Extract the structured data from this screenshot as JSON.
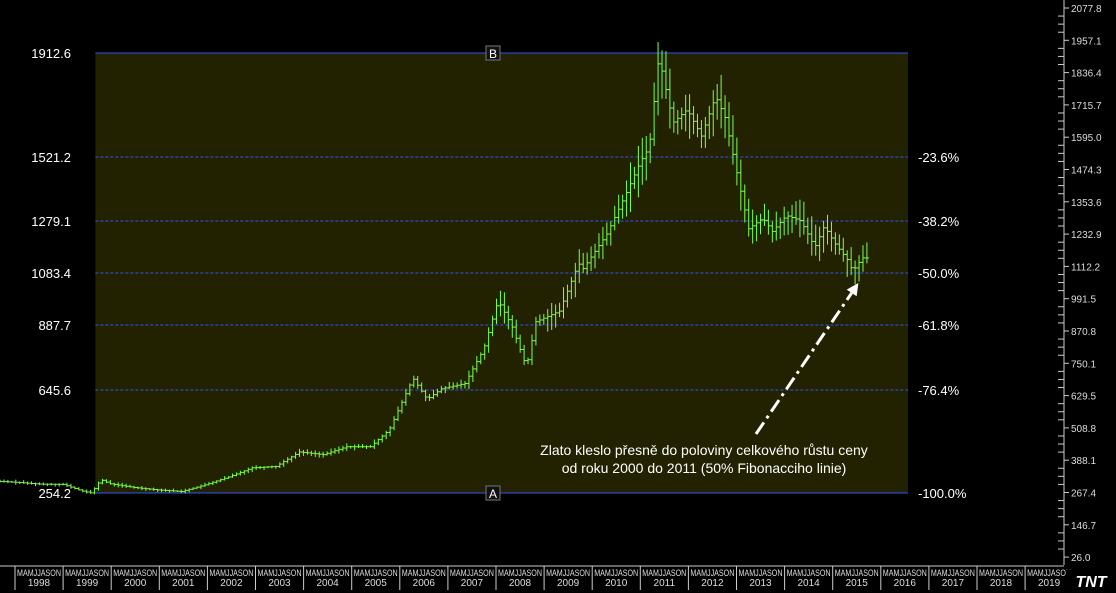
{
  "chart_data": {
    "type": "ohlc-bar",
    "title": "",
    "xlabel": "",
    "ylabel": "",
    "ylim": [
      0,
      2100
    ],
    "grid": false,
    "legend": "none",
    "colors": {
      "background": "#000000",
      "plot_fill": "#222200",
      "bars": "#7CFF4A",
      "fib_lines": "#3355EE",
      "text": "#FFFFFF",
      "arrow": "#FFFFFF"
    },
    "price_scale_right": [
      "2077.8",
      "1957.1",
      "1836.4",
      "1715.7",
      "1595.0",
      "1474.3",
      "1353.6",
      "1232.9",
      "1112.2",
      "991.5",
      "870.8",
      "750.1",
      "629.5",
      "508.8",
      "388.1",
      "267.4",
      "146.7",
      "26.0"
    ],
    "year_labels": [
      "1998",
      "1999",
      "2000",
      "2001",
      "2002",
      "2003",
      "2004",
      "2005",
      "2006",
      "2007",
      "2008",
      "2009",
      "2010",
      "2011",
      "2012",
      "2013",
      "2014",
      "2015",
      "2016",
      "2017",
      "2018",
      "2019"
    ],
    "month_tick_text": "MAMJJASON",
    "fibonacci": {
      "point_a": {
        "label": "A",
        "price": 254.2
      },
      "point_b": {
        "label": "B",
        "price": 1912.6
      },
      "levels": [
        {
          "price": 1912.6,
          "price_label": "1912.6",
          "pct_label": ""
        },
        {
          "price": 1521.2,
          "price_label": "1521.2",
          "pct_label": "-23.6%"
        },
        {
          "price": 1279.1,
          "price_label": "1279.1",
          "pct_label": "-38.2%"
        },
        {
          "price": 1083.4,
          "price_label": "1083.4",
          "pct_label": "-50.0%"
        },
        {
          "price": 887.7,
          "price_label": "887.7",
          "pct_label": "-61.8%"
        },
        {
          "price": 645.6,
          "price_label": "645.6",
          "pct_label": "-76.4%"
        },
        {
          "price": 254.2,
          "price_label": "254.2",
          "pct_label": "-100.0%"
        }
      ]
    },
    "annotation": {
      "lines": [
        "Zlato kleslo přesně do poloviny celkového růstu ceny",
        "od roku 2000 do 2011  (50% Fibonacciho linie)"
      ],
      "target_price": 1083.4,
      "target_date": 2015.8
    },
    "series": [
      {
        "values": [
          [
            1997.0,
            318
          ],
          [
            1997.5,
            300
          ],
          [
            1998.0,
            295
          ],
          [
            1998.5,
            288
          ],
          [
            1999.0,
            287
          ],
          [
            1999.4,
            262
          ],
          [
            1999.6,
            254
          ],
          [
            1999.8,
            305
          ],
          [
            2000.0,
            289
          ],
          [
            2000.5,
            275
          ],
          [
            2001.0,
            266
          ],
          [
            2001.5,
            260
          ],
          [
            2002.0,
            285
          ],
          [
            2002.5,
            315
          ],
          [
            2003.0,
            350
          ],
          [
            2003.5,
            355
          ],
          [
            2004.0,
            410
          ],
          [
            2004.5,
            400
          ],
          [
            2005.0,
            430
          ],
          [
            2005.5,
            430
          ],
          [
            2005.9,
            495
          ],
          [
            2006.4,
            690
          ],
          [
            2006.7,
            610
          ],
          [
            2007.0,
            650
          ],
          [
            2007.5,
            670
          ],
          [
            2007.9,
            800
          ],
          [
            2008.2,
            980
          ],
          [
            2008.5,
            880
          ],
          [
            2008.8,
            730
          ],
          [
            2009.0,
            900
          ],
          [
            2009.5,
            940
          ],
          [
            2009.9,
            1120
          ],
          [
            2010.0,
            1100
          ],
          [
            2010.5,
            1230
          ],
          [
            2010.9,
            1380
          ],
          [
            2011.2,
            1500
          ],
          [
            2011.4,
            1560
          ],
          [
            2011.6,
            1900
          ],
          [
            2011.9,
            1650
          ],
          [
            2012.2,
            1700
          ],
          [
            2012.5,
            1600
          ],
          [
            2012.8,
            1750
          ],
          [
            2013.0,
            1670
          ],
          [
            2013.3,
            1420
          ],
          [
            2013.5,
            1250
          ],
          [
            2013.8,
            1290
          ],
          [
            2014.0,
            1240
          ],
          [
            2014.3,
            1300
          ],
          [
            2014.6,
            1280
          ],
          [
            2014.9,
            1180
          ],
          [
            2015.1,
            1260
          ],
          [
            2015.3,
            1200
          ],
          [
            2015.6,
            1130
          ],
          [
            2015.7,
            1090
          ],
          [
            2015.9,
            1140
          ]
        ]
      }
    ]
  }
}
